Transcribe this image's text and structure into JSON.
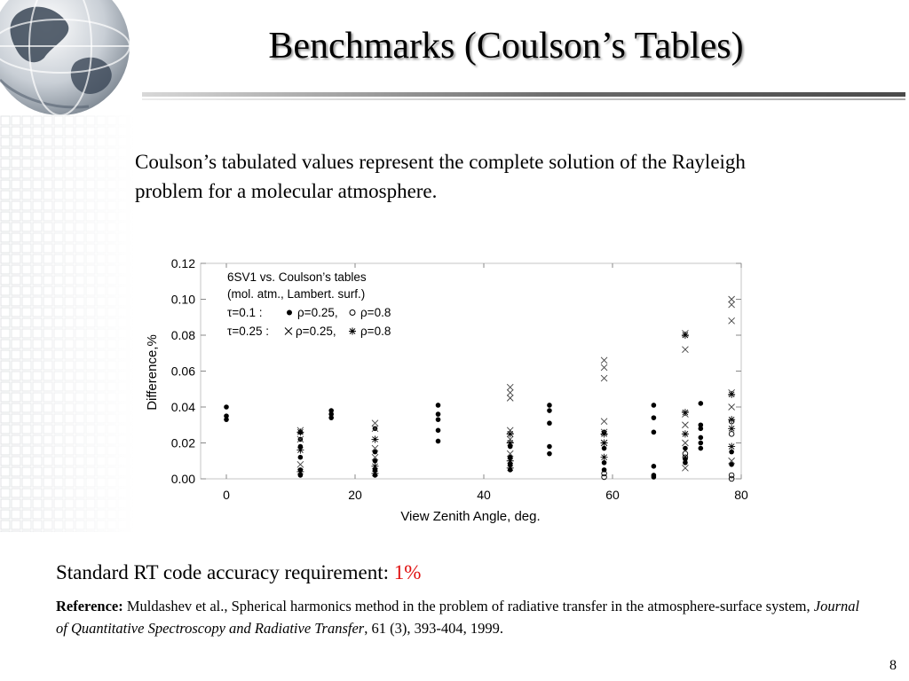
{
  "slide": {
    "title": "Benchmarks (Coulson’s Tables)",
    "intro": "Coulson’s tabulated values represent the complete solution of the Rayleigh problem for a molecular atmosphere.",
    "requirement_label": "Standard RT code accuracy requirement: ",
    "requirement_value": "1%",
    "reference_label": "Reference:",
    "reference_authors": " Muldashev et al., Spherical harmonics method in the problem of radiative transfer in the atmosphere-surface system, ",
    "reference_journal": "Journal of Quantitative Spectroscopy and Radiative Transfer",
    "reference_details": ", 61 (3), 393-404, 1999.",
    "page_number": "8"
  },
  "chart_data": {
    "type": "scatter",
    "xlabel": "View Zenith Angle, deg.",
    "ylabel": "Difference,%",
    "xlim": [
      -4,
      80
    ],
    "ylim": [
      0,
      0.12
    ],
    "x_ticks": [
      0,
      20,
      40,
      60,
      80
    ],
    "y_ticks": [
      0.0,
      0.02,
      0.04,
      0.06,
      0.08,
      0.1,
      0.12
    ],
    "y_tick_labels": [
      "0.00",
      "0.02",
      "0.04",
      "0.06",
      "0.08",
      "0.10",
      "0.12"
    ],
    "legend": {
      "title_line1": "6SV1 vs. Coulson’s tables",
      "title_line2": "(mol. atm., Lambert. surf.)",
      "row1_label": "τ=0.1 :",
      "row1_a": "ρ=0.25,",
      "row1_b": "ρ=0.8",
      "row2_label": "τ=0.25 :",
      "row2_a": "ρ=0.25,",
      "row2_b": "ρ=0.8"
    },
    "series": [
      {
        "marker": "filled-circle",
        "points": [
          [
            0,
            0.04
          ],
          [
            0,
            0.035
          ],
          [
            0,
            0.033
          ],
          [
            11.5,
            0.026
          ],
          [
            11.5,
            0.022
          ],
          [
            11.5,
            0.018
          ],
          [
            11.5,
            0.012
          ],
          [
            11.5,
            0.005
          ],
          [
            11.5,
            0.002
          ],
          [
            16.3,
            0.038
          ],
          [
            16.3,
            0.036
          ],
          [
            16.3,
            0.034
          ],
          [
            23.1,
            0.028
          ],
          [
            23.1,
            0.015
          ],
          [
            23.1,
            0.01
          ],
          [
            23.1,
            0.005
          ],
          [
            23.1,
            0.002
          ],
          [
            32.9,
            0.041
          ],
          [
            32.9,
            0.036
          ],
          [
            32.9,
            0.033
          ],
          [
            32.9,
            0.027
          ],
          [
            32.9,
            0.021
          ],
          [
            44.1,
            0.018
          ],
          [
            44.1,
            0.012
          ],
          [
            44.1,
            0.008
          ],
          [
            44.1,
            0.005
          ],
          [
            50.2,
            0.041
          ],
          [
            50.2,
            0.038
          ],
          [
            50.2,
            0.031
          ],
          [
            50.2,
            0.018
          ],
          [
            50.2,
            0.014
          ],
          [
            58.7,
            0.026
          ],
          [
            58.7,
            0.017
          ],
          [
            58.7,
            0.009
          ],
          [
            58.7,
            0.005
          ],
          [
            66.4,
            0.041
          ],
          [
            66.4,
            0.034
          ],
          [
            66.4,
            0.026
          ],
          [
            66.4,
            0.007
          ],
          [
            66.4,
            0.002
          ],
          [
            66.4,
            0.001
          ],
          [
            71.3,
            0.017
          ],
          [
            71.3,
            0.011
          ],
          [
            71.3,
            0.009
          ],
          [
            73.7,
            0.042
          ],
          [
            73.7,
            0.03
          ],
          [
            73.7,
            0.028
          ],
          [
            73.7,
            0.023
          ],
          [
            73.7,
            0.02
          ],
          [
            73.7,
            0.017
          ],
          [
            78.5,
            0.015
          ],
          [
            78.5,
            0.008
          ]
        ]
      },
      {
        "marker": "open-circle",
        "points": [
          [
            58.7,
            0.003
          ],
          [
            58.7,
            0.001
          ],
          [
            71.3,
            0.014
          ],
          [
            71.3,
            0.012
          ],
          [
            78.5,
            0.032
          ],
          [
            78.5,
            0.025
          ],
          [
            78.5,
            0.002
          ],
          [
            78.5,
            0.0
          ]
        ]
      },
      {
        "marker": "cross",
        "points": [
          [
            11.5,
            0.027
          ],
          [
            11.5,
            0.022
          ],
          [
            11.5,
            0.008
          ],
          [
            23.1,
            0.031
          ],
          [
            23.1,
            0.028
          ],
          [
            23.1,
            0.017
          ],
          [
            23.1,
            0.012
          ],
          [
            44.1,
            0.051
          ],
          [
            44.1,
            0.048
          ],
          [
            44.1,
            0.045
          ],
          [
            44.1,
            0.027
          ],
          [
            44.1,
            0.022
          ],
          [
            44.1,
            0.014
          ],
          [
            58.7,
            0.066
          ],
          [
            58.7,
            0.062
          ],
          [
            58.7,
            0.056
          ],
          [
            58.7,
            0.032
          ],
          [
            58.7,
            0.026
          ],
          [
            58.7,
            0.02
          ],
          [
            71.3,
            0.081
          ],
          [
            71.3,
            0.072
          ],
          [
            71.3,
            0.036
          ],
          [
            71.3,
            0.03
          ],
          [
            71.3,
            0.02
          ],
          [
            71.3,
            0.006
          ],
          [
            78.5,
            0.1
          ],
          [
            78.5,
            0.097
          ],
          [
            78.5,
            0.088
          ],
          [
            78.5,
            0.048
          ],
          [
            78.5,
            0.04
          ],
          [
            78.5,
            0.01
          ]
        ]
      },
      {
        "marker": "asterisk",
        "points": [
          [
            11.5,
            0.026
          ],
          [
            11.5,
            0.016
          ],
          [
            11.5,
            0.004
          ],
          [
            23.1,
            0.022
          ],
          [
            23.1,
            0.007
          ],
          [
            23.1,
            0.003
          ],
          [
            44.1,
            0.025
          ],
          [
            44.1,
            0.02
          ],
          [
            44.1,
            0.01
          ],
          [
            44.1,
            0.006
          ],
          [
            58.7,
            0.025
          ],
          [
            58.7,
            0.02
          ],
          [
            58.7,
            0.012
          ],
          [
            71.3,
            0.08
          ],
          [
            71.3,
            0.037
          ],
          [
            71.3,
            0.025
          ],
          [
            78.5,
            0.047
          ],
          [
            78.5,
            0.033
          ],
          [
            78.5,
            0.028
          ],
          [
            78.5,
            0.018
          ]
        ]
      }
    ]
  }
}
